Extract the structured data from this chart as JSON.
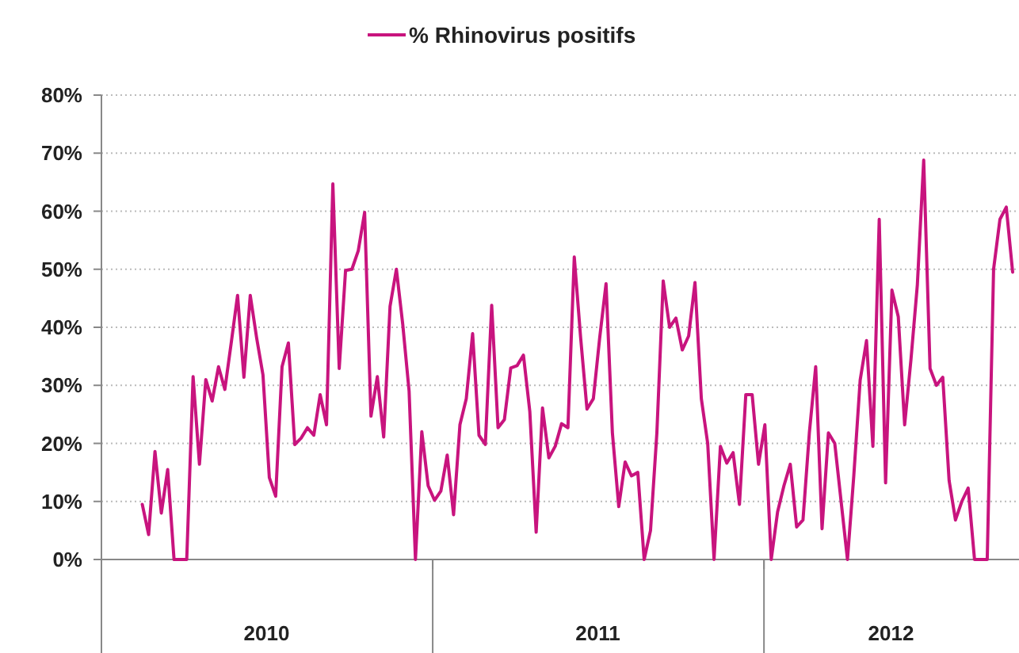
{
  "chart_data": {
    "type": "line",
    "legend": "top",
    "grid": "y",
    "marker": "none",
    "line_style": "solid",
    "x": [
      "2010-02-15",
      "2010-02-22",
      "2010-03-01",
      "2010-03-08",
      "2010-03-15",
      "2010-03-22",
      "2010-03-29",
      "2010-04-05",
      "2010-04-12",
      "2010-04-19",
      "2010-04-26",
      "2010-05-03",
      "2010-05-10",
      "2010-05-17",
      "2010-05-24",
      "2010-05-31",
      "2010-06-07",
      "2010-06-14",
      "2010-06-21",
      "2010-06-28",
      "2010-07-05",
      "2010-07-12",
      "2010-07-19",
      "2010-07-26",
      "2010-08-02",
      "2010-08-09",
      "2010-08-16",
      "2010-08-23",
      "2010-08-30",
      "2010-09-06",
      "2010-09-13",
      "2010-09-20",
      "2010-09-27",
      "2010-10-04",
      "2010-10-11",
      "2010-10-18",
      "2010-10-25",
      "2010-11-01",
      "2010-11-08",
      "2010-11-15",
      "2010-11-22",
      "2010-11-29",
      "2010-12-06",
      "2010-12-13",
      "2010-12-20",
      "2010-12-27",
      "2011-01-03",
      "2011-01-10",
      "2011-01-17",
      "2011-01-24",
      "2011-01-31",
      "2011-02-07",
      "2011-02-14",
      "2011-02-21",
      "2011-02-28",
      "2011-03-07",
      "2011-03-14",
      "2011-03-21",
      "2011-03-28",
      "2011-04-04",
      "2011-04-11",
      "2011-04-18",
      "2011-04-25",
      "2011-05-02",
      "2011-05-09",
      "2011-05-16",
      "2011-05-23",
      "2011-05-30",
      "2011-06-06",
      "2011-06-13",
      "2011-06-20",
      "2011-06-27",
      "2011-07-04",
      "2011-07-11",
      "2011-07-18",
      "2011-07-25",
      "2011-08-01",
      "2011-08-08",
      "2011-08-15",
      "2011-08-22",
      "2011-08-29",
      "2011-09-05",
      "2011-09-12",
      "2011-09-19",
      "2011-09-26",
      "2011-10-03",
      "2011-10-10",
      "2011-10-17",
      "2011-10-24",
      "2011-10-31",
      "2011-11-07",
      "2011-11-14",
      "2011-11-21",
      "2011-11-28",
      "2011-12-05",
      "2011-12-12",
      "2011-12-19",
      "2011-12-26",
      "2012-01-02",
      "2012-01-09",
      "2012-01-16",
      "2012-01-23",
      "2012-01-30",
      "2012-02-06",
      "2012-02-13",
      "2012-02-20",
      "2012-02-27",
      "2012-03-05",
      "2012-03-12",
      "2012-03-19",
      "2012-03-26",
      "2012-04-02",
      "2012-04-09",
      "2012-04-16",
      "2012-04-23",
      "2012-04-30",
      "2012-05-07",
      "2012-05-14",
      "2012-05-21",
      "2012-05-28",
      "2012-06-04",
      "2012-06-11",
      "2012-06-18",
      "2012-06-25",
      "2012-07-02",
      "2012-07-09",
      "2012-07-16",
      "2012-07-23",
      "2012-07-30",
      "2012-08-06",
      "2012-08-13",
      "2012-08-20",
      "2012-08-27",
      "2012-09-03",
      "2012-09-10",
      "2012-09-17",
      "2012-09-24",
      "2012-10-01"
    ],
    "series": [
      {
        "name": "% Rhinovirus positifs",
        "color": "#c8147e",
        "values": [
          9.5,
          4.3,
          18.6,
          8,
          15.5,
          0,
          0,
          0,
          31.5,
          16.4,
          31,
          27.3,
          33.2,
          29.3,
          37.3,
          45.5,
          31.4,
          45.5,
          38.2,
          31.8,
          14.1,
          10.9,
          33.2,
          37.3,
          19.8,
          20.9,
          22.7,
          21.4,
          28.4,
          23.2,
          64.7,
          32.9,
          49.8,
          50,
          53.2,
          59.8,
          24.7,
          31.5,
          21.1,
          43.6,
          50,
          40.5,
          29,
          0,
          22,
          12.7,
          10.2,
          11.8,
          18,
          7.7,
          23.2,
          27.7,
          38.9,
          21.4,
          19.8,
          43.8,
          22.7,
          24.1,
          33,
          33.4,
          35.2,
          25.5,
          4.7,
          26.1,
          17.5,
          19.5,
          23.4,
          22.7,
          52.1,
          38.2,
          25.9,
          27.7,
          38.2,
          47.5,
          21.8,
          9.1,
          16.8,
          14.4,
          15,
          0,
          5,
          21.8,
          48,
          40,
          41.6,
          36.1,
          38.5,
          47.7,
          27.7,
          20,
          0,
          19.5,
          16.6,
          18.4,
          9.5,
          28.4,
          28.4,
          16.4,
          23.2,
          0,
          8.2,
          12.7,
          16.4,
          5.6,
          6.8,
          21.8,
          33.2,
          5.3,
          21.8,
          20,
          10,
          0,
          14.5,
          30.9,
          37.7,
          19.5,
          58.6,
          13.2,
          46.4,
          41.8,
          23.2,
          34.5,
          47.3,
          68.8,
          32.9,
          30,
          31.4,
          13.6,
          6.8,
          10,
          12.3,
          0,
          0,
          0,
          50,
          58.6,
          60.7,
          49.5
        ]
      }
    ],
    "xlim": [
      "2010-01-01",
      "2012-10-08"
    ],
    "xticks": [
      {
        "value": "2010-01-01",
        "label": null
      },
      {
        "value": "2010-07-02",
        "label": "2010"
      },
      {
        "value": "2011-01-01",
        "label": null
      },
      {
        "value": "2011-07-02",
        "label": "2011"
      },
      {
        "value": "2012-01-01",
        "label": null
      },
      {
        "value": "2012-05-20",
        "label": "2012"
      }
    ],
    "ylim": [
      0,
      80
    ],
    "yticks": [
      {
        "value": 0,
        "label": "0%"
      },
      {
        "value": 10,
        "label": "10%"
      },
      {
        "value": 20,
        "label": "20%"
      },
      {
        "value": 30,
        "label": "30%"
      },
      {
        "value": 40,
        "label": "40%"
      },
      {
        "value": 50,
        "label": "50%"
      },
      {
        "value": 60,
        "label": "60%"
      },
      {
        "value": 70,
        "label": "70%"
      },
      {
        "value": 80,
        "label": "80%"
      }
    ]
  }
}
